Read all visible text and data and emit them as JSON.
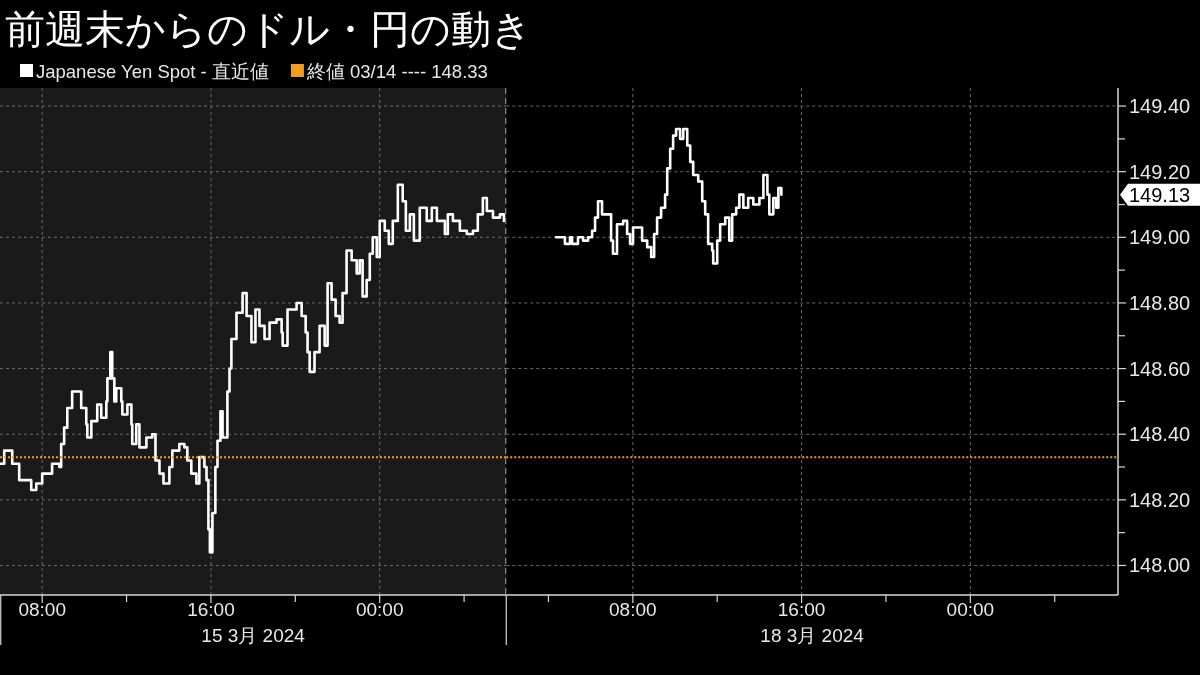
{
  "chart_data": [
    {
      "type": "step",
      "title": "前週末からのドル・円の動き",
      "xlabel": "15 3月 2024",
      "x": [
        6.0,
        6.2,
        6.58,
        6.91,
        7.48,
        7.72,
        8.0,
        8.47,
        8.81,
        8.9,
        9.04,
        9.19,
        9.42,
        9.66,
        9.85,
        10.09,
        10.14,
        10.33,
        10.61,
        10.8,
        11.04,
        11.09,
        11.23,
        11.32,
        11.42,
        11.51,
        11.75,
        11.8,
        12.04,
        12.23,
        12.27,
        12.46,
        12.61,
        12.94,
        13.22,
        13.37,
        13.56,
        13.75,
        14.03,
        14.17,
        14.5,
        14.74,
        14.88,
        15.07,
        15.31,
        15.45,
        15.69,
        15.79,
        15.88,
        15.95,
        16.07,
        16.21,
        16.31,
        16.45,
        16.55,
        16.78,
        16.88,
        16.97,
        17.21,
        17.5,
        17.69,
        17.92,
        18.11,
        18.3,
        18.54,
        18.78,
        19.11,
        19.35,
        19.4,
        19.63,
        20.06,
        20.3,
        20.49,
        20.58,
        20.68,
        20.91,
        21.15,
        21.39,
        21.53,
        21.72,
        21.91,
        22.1,
        22.24,
        22.43,
        22.67,
        22.91,
        23.05,
        23.19,
        23.38,
        23.53,
        23.67,
        23.86,
        24.0,
        24.24,
        24.43,
        24.62,
        24.86,
        25.09,
        25.24,
        25.43,
        25.62,
        25.9,
        26.23,
        26.47,
        26.71,
        27.09,
        27.23,
        27.47,
        27.8,
        28.13,
        28.42,
        28.65,
        28.89,
        29.08,
        29.37,
        29.7,
        29.89
      ],
      "series": [
        {
          "name": "Japanese Yen Spot - 直近値",
          "color": "#ffffff",
          "values": [
            148.31,
            148.35,
            148.31,
            148.26,
            148.23,
            148.25,
            148.28,
            148.31,
            148.3,
            148.37,
            148.42,
            148.48,
            148.53,
            148.53,
            148.48,
            148.43,
            148.39,
            148.44,
            148.49,
            148.45,
            148.5,
            148.57,
            148.65,
            148.57,
            148.5,
            148.54,
            148.5,
            148.46,
            148.49,
            148.43,
            148.37,
            148.43,
            148.36,
            148.39,
            148.4,
            148.32,
            148.28,
            148.25,
            148.3,
            148.35,
            148.37,
            148.36,
            148.32,
            148.28,
            148.25,
            148.33,
            148.3,
            148.26,
            148.11,
            148.04,
            148.16,
            148.3,
            148.38,
            148.47,
            148.39,
            148.53,
            148.6,
            148.69,
            148.77,
            148.83,
            148.76,
            148.68,
            148.78,
            148.73,
            148.69,
            148.74,
            148.75,
            148.71,
            148.67,
            148.78,
            148.8,
            148.76,
            148.71,
            148.65,
            148.59,
            148.65,
            148.73,
            148.67,
            148.86,
            148.81,
            148.76,
            148.74,
            148.83,
            148.96,
            148.93,
            148.89,
            148.93,
            148.82,
            148.87,
            148.95,
            149.0,
            148.94,
            149.05,
            149.02,
            148.98,
            149.05,
            149.16,
            149.11,
            149.02,
            149.07,
            148.99,
            149.09,
            149.05,
            149.09,
            149.05,
            149.01,
            149.07,
            149.05,
            149.02,
            149.01,
            149.02,
            149.07,
            149.12,
            149.08,
            149.06,
            149.07,
            149.05
          ]
        }
      ],
      "xlim": [
        6,
        30
      ],
      "xticks": [
        {
          "value": 8,
          "label": "08:00"
        },
        {
          "value": 12,
          "label": null
        },
        {
          "value": 16,
          "label": "16:00"
        },
        {
          "value": 20,
          "label": null
        },
        {
          "value": 24,
          "label": "00:00"
        },
        {
          "value": 28,
          "label": null
        }
      ],
      "ylim": [
        147.91,
        149.455
      ],
      "yticks": [
        148,
        148.2,
        148.4,
        148.6,
        148.8,
        149,
        149.2,
        149.4
      ],
      "tick_labels": "x",
      "grid": true,
      "legend": "top left",
      "ref_lines": [
        {
          "axis": "y",
          "value": 148.33,
          "label": "終値 03/14 ---- 148.33",
          "color": "#f39c1f",
          "line_style": "dotted"
        },
        {
          "axis": "x",
          "value": 30,
          "color": "#8a8a8a",
          "line_style": "dashed"
        }
      ],
      "bands": [
        {
          "axis": "x",
          "from": 6,
          "to": 30,
          "color": "#1a1a1a"
        }
      ]
    },
    {
      "type": "step",
      "xlabel": "18 3月 2024",
      "x": [
        4.36,
        4.69,
        4.78,
        5.02,
        5.12,
        5.4,
        5.64,
        5.88,
        6.07,
        6.21,
        6.35,
        6.54,
        6.92,
        6.97,
        7.06,
        7.25,
        7.54,
        7.73,
        7.87,
        8.01,
        8.25,
        8.44,
        8.68,
        8.87,
        9.01,
        9.15,
        9.34,
        9.53,
        9.63,
        9.77,
        9.91,
        10.05,
        10.24,
        10.39,
        10.58,
        10.72,
        10.86,
        11.1,
        11.29,
        11.43,
        11.57,
        11.76,
        11.81,
        12.0,
        12.14,
        12.38,
        12.57,
        12.71,
        12.9,
        13.05,
        13.24,
        13.47,
        13.71,
        14.0,
        14.19,
        14.38,
        14.47,
        14.66,
        14.8,
        14.9,
        15.04
      ],
      "series": [
        {
          "color": "#ffffff",
          "values": [
            149.0,
            149.0,
            148.98,
            149.0,
            148.98,
            149.0,
            148.99,
            149.0,
            149.02,
            149.06,
            149.11,
            149.07,
            149.07,
            148.99,
            148.95,
            149.04,
            149.05,
            149.01,
            148.98,
            149.03,
            149.03,
            148.99,
            148.97,
            148.94,
            149.01,
            149.06,
            149.09,
            149.13,
            149.21,
            149.27,
            149.31,
            149.33,
            149.3,
            149.33,
            149.28,
            149.23,
            149.19,
            149.17,
            149.11,
            149.07,
            148.98,
            148.96,
            148.92,
            148.99,
            149.04,
            149.06,
            148.99,
            149.07,
            149.09,
            149.13,
            149.09,
            149.12,
            149.1,
            149.12,
            149.19,
            149.13,
            149.07,
            149.12,
            149.09,
            149.15,
            149.13
          ]
        }
      ],
      "xlim": [
        2,
        31
      ],
      "xticks": [
        {
          "value": 4,
          "label": null
        },
        {
          "value": 8,
          "label": "08:00"
        },
        {
          "value": 12,
          "label": null
        },
        {
          "value": 16,
          "label": "16:00"
        },
        {
          "value": 20,
          "label": null
        },
        {
          "value": 24,
          "label": "00:00"
        },
        {
          "value": 28,
          "label": null
        }
      ],
      "ylim": [
        147.91,
        149.455
      ],
      "yticks": [
        {
          "value": 148,
          "label": "148.00"
        },
        {
          "value": 148.1,
          "label": null
        },
        {
          "value": 148.2,
          "label": "148.20"
        },
        {
          "value": 148.3,
          "label": null
        },
        {
          "value": 148.4,
          "label": "148.40"
        },
        {
          "value": 148.5,
          "label": null
        },
        {
          "value": 148.6,
          "label": "148.60"
        },
        {
          "value": 148.7,
          "label": null
        },
        {
          "value": 148.8,
          "label": "148.80"
        },
        {
          "value": 148.9,
          "label": null
        },
        {
          "value": 149,
          "label": "149.00"
        },
        {
          "value": 149.1,
          "label": null
        },
        {
          "value": 149.2,
          "label": "149.20"
        },
        {
          "value": 149.3,
          "label": null
        },
        {
          "value": 149.4,
          "label": "149.40"
        }
      ],
      "grid": true,
      "ref_lines": [
        {
          "axis": "y",
          "value": 148.33,
          "color": "#f39c1f",
          "line_style": "dotted"
        }
      ],
      "annotations": [
        "149.13"
      ]
    }
  ]
}
